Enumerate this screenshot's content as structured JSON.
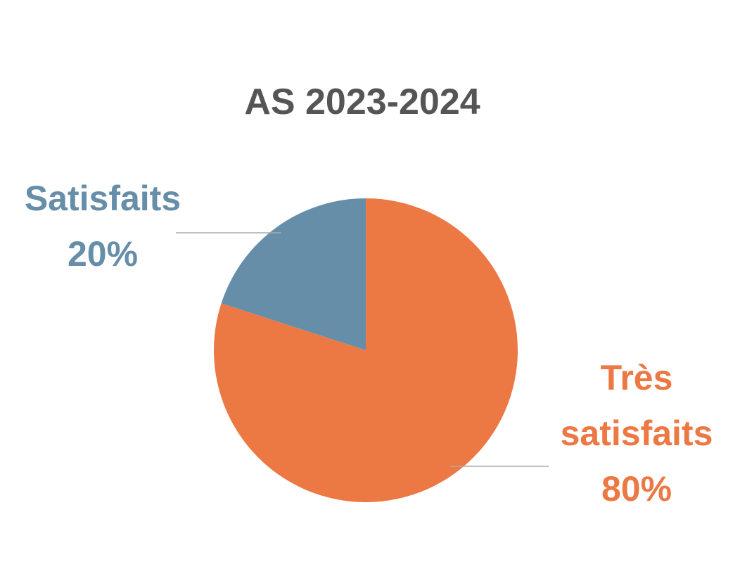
{
  "chart_data": {
    "type": "pie",
    "title": "AS 2023-2024",
    "categories": [
      "Très satisfaits",
      "Satisfaits"
    ],
    "values": [
      80,
      20
    ],
    "value_labels": [
      "80%",
      "20%"
    ],
    "colors": [
      "#ec7843",
      "#678ea9"
    ]
  }
}
